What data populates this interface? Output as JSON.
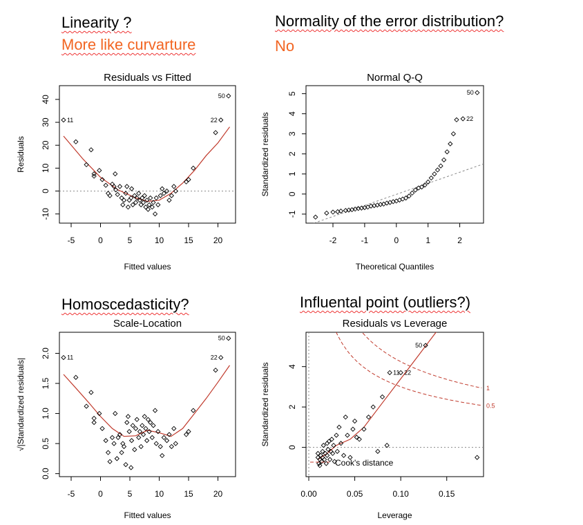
{
  "annotations": {
    "linearity_q": "Linearity ?",
    "linearity_a": "More like curvarture",
    "normality_q": "Normality of the error distribution?",
    "normality_a": "No",
    "homosced_q": "Homoscedasticity?",
    "influence_q": "Influental point (outliers?)"
  },
  "colors": {
    "points": "#000000",
    "smooth": "#c0392b",
    "cook": "#c0392b",
    "ref": "#888888",
    "accent": "#f26522"
  },
  "chart_data": [
    {
      "id": "rvf",
      "type": "scatter",
      "title": "Residuals vs Fitted",
      "xlabel": "Fitted values",
      "ylabel": "Residuals",
      "xlim": [
        -7,
        23
      ],
      "ylim": [
        -14,
        46
      ],
      "xticks": [
        -5,
        0,
        5,
        10,
        15,
        20
      ],
      "yticks": [
        -10,
        0,
        10,
        20,
        30,
        40
      ],
      "hline": 0,
      "points": [
        [
          -6.3,
          31
        ],
        [
          -4.2,
          21.5
        ],
        [
          -2.4,
          11.5
        ],
        [
          -1.6,
          18
        ],
        [
          -1.1,
          7.5
        ],
        [
          -1.1,
          6.5
        ],
        [
          -0.2,
          9
        ],
        [
          0.3,
          5
        ],
        [
          0.9,
          2.5
        ],
        [
          1.3,
          -1
        ],
        [
          1.6,
          -2
        ],
        [
          2,
          3
        ],
        [
          2.3,
          2
        ],
        [
          2.5,
          7.5
        ],
        [
          2.6,
          0.5
        ],
        [
          2.9,
          -1.5
        ],
        [
          3.3,
          2
        ],
        [
          3.6,
          -3
        ],
        [
          3.8,
          -6
        ],
        [
          4,
          -4
        ],
        [
          4.3,
          -1
        ],
        [
          4.5,
          2
        ],
        [
          4.7,
          -7
        ],
        [
          4.9,
          -4
        ],
        [
          5.2,
          -3
        ],
        [
          5.3,
          1
        ],
        [
          5.5,
          -6
        ],
        [
          5.8,
          -2
        ],
        [
          6,
          -5
        ],
        [
          6.2,
          -3
        ],
        [
          6.5,
          -1
        ],
        [
          6.7,
          -4
        ],
        [
          6.9,
          -6
        ],
        [
          7.1,
          -3
        ],
        [
          7.3,
          -5
        ],
        [
          7.5,
          -2
        ],
        [
          7.7,
          -7
        ],
        [
          7.9,
          -4
        ],
        [
          8.1,
          -8
        ],
        [
          8.3,
          -6
        ],
        [
          8.5,
          -3
        ],
        [
          8.8,
          -7
        ],
        [
          9,
          -5
        ],
        [
          9.3,
          -10
        ],
        [
          9.5,
          -3
        ],
        [
          9.8,
          -6
        ],
        [
          10.2,
          -2
        ],
        [
          10.5,
          1
        ],
        [
          10.8,
          -1
        ],
        [
          11.3,
          0
        ],
        [
          11.7,
          -4
        ],
        [
          12.1,
          -2
        ],
        [
          12.5,
          2
        ],
        [
          12.8,
          0
        ],
        [
          14.6,
          4
        ],
        [
          15,
          5
        ],
        [
          15.8,
          10
        ],
        [
          19.6,
          25.5
        ],
        [
          20.5,
          31
        ],
        [
          21.8,
          41.5
        ]
      ],
      "smooth": [
        [
          -6.3,
          24
        ],
        [
          -3,
          14
        ],
        [
          0,
          6
        ],
        [
          3,
          0.5
        ],
        [
          6,
          -3
        ],
        [
          8,
          -4.5
        ],
        [
          10,
          -4
        ],
        [
          12,
          -1
        ],
        [
          14,
          3.5
        ],
        [
          16,
          9
        ],
        [
          18,
          15.5
        ],
        [
          20,
          21
        ],
        [
          22,
          28
        ]
      ],
      "labels": [
        {
          "text": "11",
          "at": [
            -6.3,
            31
          ],
          "side": "right"
        },
        {
          "text": "22",
          "at": [
            20.5,
            31
          ],
          "side": "left"
        },
        {
          "text": "50",
          "at": [
            21.8,
            41.5
          ],
          "side": "left"
        }
      ]
    },
    {
      "id": "qq",
      "type": "scatter",
      "title": "Normal Q-Q",
      "xlabel": "Theoretical Quantiles",
      "ylabel": "Standardized residuals",
      "xlim": [
        -2.85,
        2.75
      ],
      "ylim": [
        -1.45,
        5.4
      ],
      "xticks": [
        -2,
        -1,
        0,
        1,
        2
      ],
      "yticks": [
        -1,
        0,
        1,
        2,
        3,
        4,
        5
      ],
      "refline": [
        [
          -2.6,
          -1.45
        ],
        [
          2.75,
          1.5
        ]
      ],
      "points": [
        [
          -2.55,
          -1.15
        ],
        [
          -2.2,
          -0.95
        ],
        [
          -2,
          -0.9
        ],
        [
          -1.85,
          -0.88
        ],
        [
          -1.75,
          -0.85
        ],
        [
          -1.6,
          -0.82
        ],
        [
          -1.5,
          -0.8
        ],
        [
          -1.4,
          -0.78
        ],
        [
          -1.3,
          -0.75
        ],
        [
          -1.2,
          -0.72
        ],
        [
          -1.1,
          -0.7
        ],
        [
          -1,
          -0.68
        ],
        [
          -0.9,
          -0.65
        ],
        [
          -0.8,
          -0.6
        ],
        [
          -0.7,
          -0.58
        ],
        [
          -0.6,
          -0.55
        ],
        [
          -0.5,
          -0.52
        ],
        [
          -0.4,
          -0.5
        ],
        [
          -0.3,
          -0.45
        ],
        [
          -0.2,
          -0.42
        ],
        [
          -0.1,
          -0.38
        ],
        [
          0,
          -0.35
        ],
        [
          0.1,
          -0.3
        ],
        [
          0.2,
          -0.25
        ],
        [
          0.3,
          -0.2
        ],
        [
          0.4,
          -0.1
        ],
        [
          0.5,
          0.05
        ],
        [
          0.6,
          0.2
        ],
        [
          0.7,
          0.3
        ],
        [
          0.8,
          0.35
        ],
        [
          0.9,
          0.45
        ],
        [
          1,
          0.6
        ],
        [
          1.1,
          0.8
        ],
        [
          1.2,
          1
        ],
        [
          1.3,
          1.2
        ],
        [
          1.4,
          1.4
        ],
        [
          1.5,
          1.7
        ],
        [
          1.6,
          2.1
        ],
        [
          1.7,
          2.5
        ],
        [
          1.8,
          3
        ],
        [
          1.9,
          3.7
        ],
        [
          2.1,
          3.75
        ],
        [
          2.55,
          5.05
        ]
      ],
      "labels": [
        {
          "text": "22",
          "at": [
            2.1,
            3.75
          ],
          "side": "right"
        },
        {
          "text": "50",
          "at": [
            2.55,
            5.05
          ],
          "side": "left"
        }
      ]
    },
    {
      "id": "sl",
      "type": "scatter",
      "title": "Scale-Location",
      "xlabel": "Fitted values",
      "ylabel": "√|Standardized residuals|",
      "xlim": [
        -7,
        23
      ],
      "ylim": [
        -0.05,
        2.35
      ],
      "xticks": [
        -5,
        0,
        5,
        10,
        15,
        20
      ],
      "yticks": [
        0.0,
        0.5,
        1.0,
        1.5,
        2.0
      ],
      "points": [
        [
          -6.3,
          1.93
        ],
        [
          -4.2,
          1.6
        ],
        [
          -2.4,
          1.12
        ],
        [
          -1.6,
          1.35
        ],
        [
          -1.1,
          0.92
        ],
        [
          -1.1,
          0.85
        ],
        [
          -0.2,
          1.0
        ],
        [
          0.3,
          0.75
        ],
        [
          0.9,
          0.55
        ],
        [
          1.3,
          0.35
        ],
        [
          1.6,
          0.2
        ],
        [
          2,
          0.6
        ],
        [
          2.3,
          0.5
        ],
        [
          2.5,
          1.0
        ],
        [
          2.8,
          0.25
        ],
        [
          3,
          0.6
        ],
        [
          3.3,
          0.65
        ],
        [
          3.6,
          0.35
        ],
        [
          3.8,
          0.5
        ],
        [
          4,
          0.45
        ],
        [
          4.3,
          0.15
        ],
        [
          4.5,
          0.85
        ],
        [
          4.7,
          0.95
        ],
        [
          4.9,
          0.7
        ],
        [
          5.2,
          0.1
        ],
        [
          5.3,
          0.55
        ],
        [
          5.5,
          0.8
        ],
        [
          5.8,
          0.4
        ],
        [
          6,
          0.75
        ],
        [
          6.2,
          0.9
        ],
        [
          6.5,
          0.6
        ],
        [
          6.7,
          0.7
        ],
        [
          6.9,
          0.45
        ],
        [
          7.1,
          0.8
        ],
        [
          7.3,
          0.65
        ],
        [
          7.5,
          0.95
        ],
        [
          7.7,
          0.75
        ],
        [
          7.9,
          0.55
        ],
        [
          8.1,
          0.9
        ],
        [
          8.3,
          0.7
        ],
        [
          8.5,
          0.85
        ],
        [
          8.8,
          0.6
        ],
        [
          9,
          0.8
        ],
        [
          9.3,
          1.05
        ],
        [
          9.5,
          0.5
        ],
        [
          9.8,
          0.7
        ],
        [
          10.2,
          0.45
        ],
        [
          10.5,
          0.3
        ],
        [
          10.8,
          0.6
        ],
        [
          11.3,
          0.55
        ],
        [
          11.7,
          0.65
        ],
        [
          12.1,
          0.45
        ],
        [
          12.5,
          0.75
        ],
        [
          12.8,
          0.5
        ],
        [
          14.6,
          0.65
        ],
        [
          15,
          0.7
        ],
        [
          15.8,
          1.05
        ],
        [
          19.6,
          1.72
        ],
        [
          20.5,
          1.93
        ],
        [
          21.8,
          2.25
        ]
      ],
      "smooth": [
        [
          -6.3,
          1.65
        ],
        [
          -4,
          1.4
        ],
        [
          -2,
          1.18
        ],
        [
          0,
          0.95
        ],
        [
          2,
          0.75
        ],
        [
          4,
          0.62
        ],
        [
          6,
          0.63
        ],
        [
          8,
          0.72
        ],
        [
          10,
          0.68
        ],
        [
          12,
          0.62
        ],
        [
          14,
          0.75
        ],
        [
          16,
          1.0
        ],
        [
          18,
          1.25
        ],
        [
          20,
          1.52
        ],
        [
          22,
          1.8
        ]
      ],
      "labels": [
        {
          "text": "11",
          "at": [
            -6.3,
            1.93
          ],
          "side": "right"
        },
        {
          "text": "22",
          "at": [
            20.5,
            1.93
          ],
          "side": "left"
        },
        {
          "text": "50",
          "at": [
            21.8,
            2.25
          ],
          "side": "left"
        }
      ]
    },
    {
      "id": "rvl",
      "type": "scatter",
      "title": "Residuals vs Leverage",
      "xlabel": "Leverage",
      "ylabel": "Standardized residuals",
      "xlim": [
        -0.003,
        0.19
      ],
      "ylim": [
        -1.45,
        5.7
      ],
      "xticks": [
        0.0,
        0.05,
        0.1,
        0.15
      ],
      "xticklabels": [
        "0.00",
        "0.05",
        "0.10",
        "0.15"
      ],
      "yticks": [
        0,
        2,
        4
      ],
      "hline": 0,
      "vline": 0,
      "legend": "Cook's distance",
      "contour_labels": [
        "1",
        "0.5"
      ],
      "points": [
        [
          0.01,
          -0.3
        ],
        [
          0.01,
          -0.5
        ],
        [
          0.011,
          -0.8
        ],
        [
          0.012,
          -0.6
        ],
        [
          0.012,
          -0.9
        ],
        [
          0.013,
          -0.4
        ],
        [
          0.014,
          -0.7
        ],
        [
          0.015,
          -0.2
        ],
        [
          0.015,
          -0.5
        ],
        [
          0.016,
          0.1
        ],
        [
          0.017,
          -0.6
        ],
        [
          0.018,
          -0.3
        ],
        [
          0.019,
          -0.8
        ],
        [
          0.02,
          0.2
        ],
        [
          0.02,
          -0.4
        ],
        [
          0.021,
          -0.1
        ],
        [
          0.022,
          0.3
        ],
        [
          0.023,
          -0.6
        ],
        [
          0.024,
          -0.2
        ],
        [
          0.025,
          0.4
        ],
        [
          0.026,
          -0.3
        ],
        [
          0.027,
          0.1
        ],
        [
          0.028,
          -0.7
        ],
        [
          0.03,
          0.6
        ],
        [
          0.031,
          -0.2
        ],
        [
          0.033,
          1.0
        ],
        [
          0.035,
          0.2
        ],
        [
          0.038,
          -0.4
        ],
        [
          0.04,
          1.5
        ],
        [
          0.042,
          0.6
        ],
        [
          0.045,
          -0.5
        ],
        [
          0.048,
          0.9
        ],
        [
          0.05,
          1.3
        ],
        [
          0.052,
          0.5
        ],
        [
          0.055,
          0.4
        ],
        [
          0.06,
          0.9
        ],
        [
          0.065,
          1.5
        ],
        [
          0.07,
          2.0
        ],
        [
          0.075,
          -0.2
        ],
        [
          0.08,
          2.5
        ],
        [
          0.085,
          0.1
        ],
        [
          0.088,
          3.7
        ],
        [
          0.1,
          3.7
        ],
        [
          0.127,
          5.05
        ],
        [
          0.183,
          -0.5
        ]
      ],
      "smooth": [
        [
          0.01,
          -0.6
        ],
        [
          0.02,
          -0.3
        ],
        [
          0.03,
          0.1
        ],
        [
          0.045,
          0.4
        ],
        [
          0.06,
          1.0
        ],
        [
          0.08,
          2.2
        ],
        [
          0.1,
          3.4
        ],
        [
          0.12,
          4.6
        ],
        [
          0.14,
          5.8
        ]
      ],
      "labels": [
        {
          "text": "11",
          "at": [
            0.088,
            3.7
          ],
          "side": "right"
        },
        {
          "text": "22",
          "at": [
            0.1,
            3.7
          ],
          "side": "right"
        },
        {
          "text": "50",
          "at": [
            0.127,
            5.05
          ],
          "side": "left"
        }
      ]
    }
  ]
}
